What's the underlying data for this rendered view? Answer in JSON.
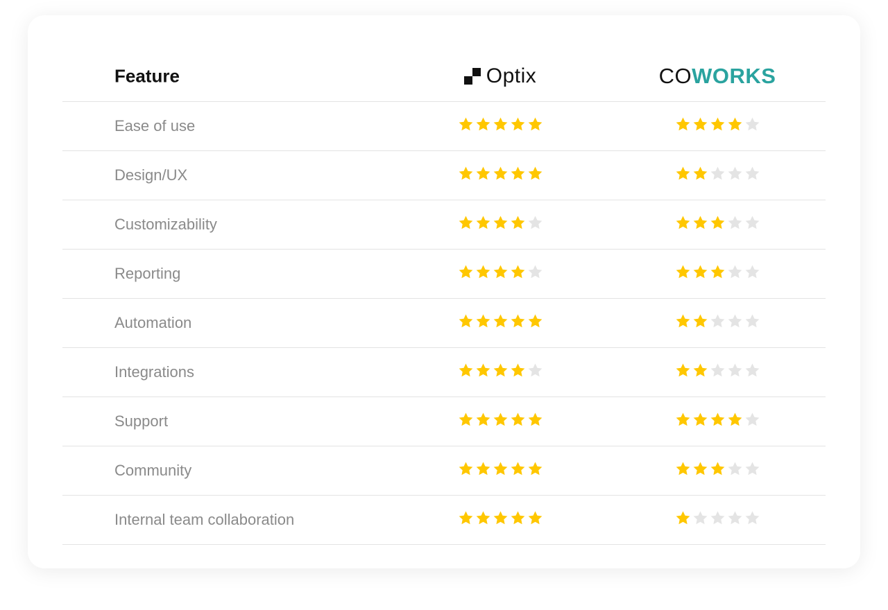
{
  "header": {
    "feature_label": "Feature",
    "brands": [
      {
        "name": "Optix",
        "icon": "checker-squares-icon"
      },
      {
        "name_prefix": "CO",
        "name_suffix": "WORKS",
        "accent": "#2aa39f"
      }
    ]
  },
  "colors": {
    "star_filled": "#ffc700",
    "star_empty": "#e4e4e4"
  },
  "max_rating": 5,
  "rows": [
    {
      "feature": "Ease of use",
      "optix": 5,
      "coworks": 4
    },
    {
      "feature": "Design/UX",
      "optix": 5,
      "coworks": 2
    },
    {
      "feature": "Customizability",
      "optix": 4,
      "coworks": 3
    },
    {
      "feature": "Reporting",
      "optix": 4,
      "coworks": 3
    },
    {
      "feature": "Automation",
      "optix": 5,
      "coworks": 2
    },
    {
      "feature": "Integrations",
      "optix": 4,
      "coworks": 2
    },
    {
      "feature": "Support",
      "optix": 5,
      "coworks": 4
    },
    {
      "feature": "Community",
      "optix": 5,
      "coworks": 3
    },
    {
      "feature": "Internal team collaboration",
      "optix": 5,
      "coworks": 1
    }
  ]
}
